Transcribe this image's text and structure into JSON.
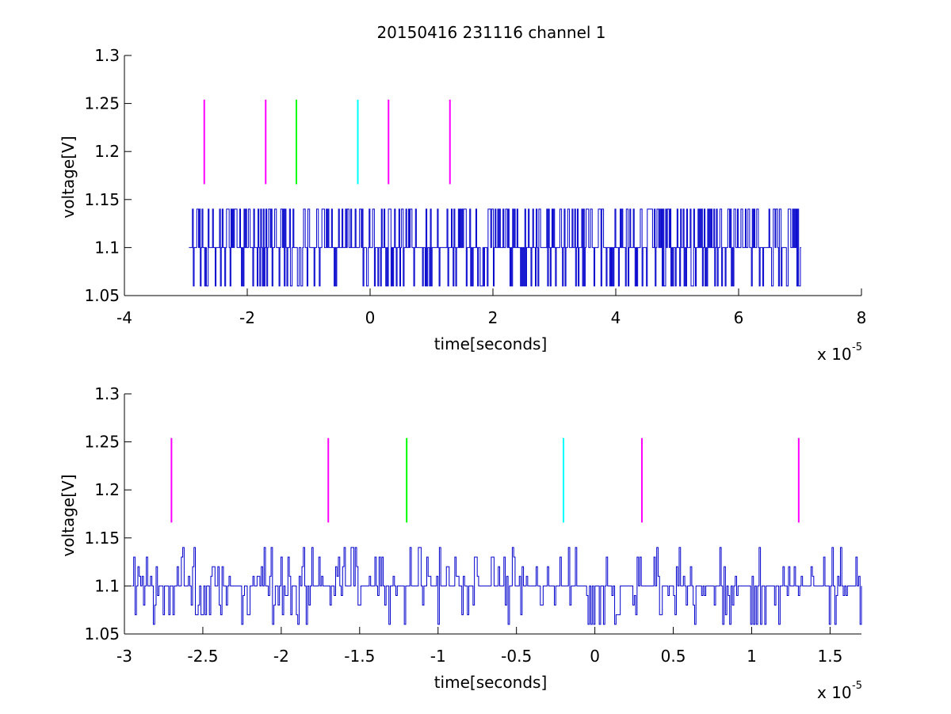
{
  "window": {
    "background": "#ffffff"
  },
  "title": "20150416 231116 channel 1",
  "colors": {
    "signal": "#0000cc",
    "magenta": "#ff00ff",
    "green": "#00ff00",
    "cyan": "#00ffff",
    "axis": "#000000"
  },
  "chart_data": [
    {
      "type": "line",
      "title": "20150416 231116 channel 1",
      "xlabel": "time[seconds]",
      "ylabel": "voltage[V]",
      "x_exponent_label": "x 10",
      "x_exponent": "-5",
      "x_scale": 1e-05,
      "xlim": [
        -4,
        8
      ],
      "ylim": [
        1.05,
        1.3
      ],
      "xticks": [
        -4,
        -2,
        0,
        2,
        4,
        6,
        8
      ],
      "xtick_labels": [
        "-4",
        "-2",
        "0",
        "2",
        "4",
        "6",
        "8"
      ],
      "yticks": [
        1.05,
        1.1,
        1.15,
        1.2,
        1.25,
        1.3
      ],
      "ytick_labels": [
        "1.05",
        "1.1",
        "1.15",
        "1.2",
        "1.25",
        "1.3"
      ],
      "grid": false,
      "series": [
        {
          "color": "#0000cc",
          "x_range": [
            -2.95,
            7.02
          ],
          "levels": [
            1.06,
            1.1,
            1.14
          ],
          "baseline": 1.1,
          "description_hidden": "noisy step signal switching among three voltage levels"
        }
      ],
      "markers": [
        {
          "x": -2.7,
          "y": [
            1.166,
            1.254
          ],
          "color": "#ff00ff"
        },
        {
          "x": -1.7,
          "y": [
            1.166,
            1.254
          ],
          "color": "#ff00ff"
        },
        {
          "x": -1.2,
          "y": [
            1.166,
            1.254
          ],
          "color": "#00ff00"
        },
        {
          "x": -0.2,
          "y": [
            1.166,
            1.254
          ],
          "color": "#00ffff"
        },
        {
          "x": 0.3,
          "y": [
            1.166,
            1.254
          ],
          "color": "#ff00ff"
        },
        {
          "x": 1.3,
          "y": [
            1.166,
            1.254
          ],
          "color": "#ff00ff"
        }
      ]
    },
    {
      "type": "line",
      "title": "",
      "xlabel": "time[seconds]",
      "ylabel": "voltage[V]",
      "x_exponent_label": "x 10",
      "x_exponent": "-5",
      "x_scale": 1e-05,
      "xlim": [
        -3.0,
        1.7
      ],
      "ylim": [
        1.05,
        1.3
      ],
      "xticks": [
        -3,
        -2.5,
        -2,
        -1.5,
        -1,
        -0.5,
        0,
        0.5,
        1,
        1.5
      ],
      "xtick_labels": [
        "-3",
        "-2.5",
        "-2",
        "-1.5",
        "-1",
        "-0.5",
        "0",
        "0.5",
        "1",
        "1.5"
      ],
      "yticks": [
        1.05,
        1.1,
        1.15,
        1.2,
        1.25,
        1.3
      ],
      "ytick_labels": [
        "1.05",
        "1.1",
        "1.15",
        "1.2",
        "1.25",
        "1.3"
      ],
      "grid": false,
      "series": [
        {
          "color": "#0000cc",
          "x_range": [
            -2.95,
            1.7
          ],
          "levels": [
            1.06,
            1.07,
            1.08,
            1.09,
            1.1,
            1.11,
            1.12,
            1.13,
            1.14
          ],
          "baseline": 1.1
        }
      ],
      "markers": [
        {
          "x": -2.7,
          "y": [
            1.166,
            1.254
          ],
          "color": "#ff00ff"
        },
        {
          "x": -1.7,
          "y": [
            1.166,
            1.254
          ],
          "color": "#ff00ff"
        },
        {
          "x": -1.2,
          "y": [
            1.166,
            1.254
          ],
          "color": "#00ff00"
        },
        {
          "x": -0.2,
          "y": [
            1.166,
            1.254
          ],
          "color": "#00ffff"
        },
        {
          "x": 0.3,
          "y": [
            1.166,
            1.254
          ],
          "color": "#ff00ff"
        },
        {
          "x": 1.3,
          "y": [
            1.166,
            1.254
          ],
          "color": "#ff00ff"
        }
      ]
    }
  ]
}
